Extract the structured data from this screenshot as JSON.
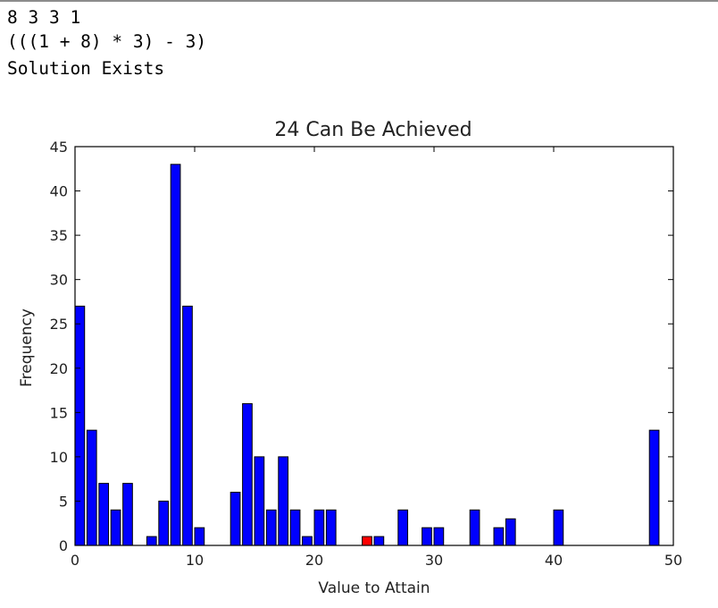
{
  "console": {
    "lines": [
      "8 3 3 1",
      "(((1 + 8) * 3) - 3)",
      "Solution Exists"
    ]
  },
  "colors": {
    "bar": "#0000ff",
    "highlight": "#ff0000",
    "bar_edge": "#000000"
  },
  "chart_data": {
    "type": "bar",
    "title": "24 Can Be Achieved",
    "xlabel": "Value to Attain",
    "ylabel": "Frequency",
    "xlim": [
      0,
      50
    ],
    "ylim": [
      0,
      45
    ],
    "bar_width": 0.8,
    "xticks": [
      0,
      10,
      20,
      30,
      40,
      50
    ],
    "yticks": [
      0,
      5,
      10,
      15,
      20,
      25,
      30,
      35,
      40,
      45
    ],
    "highlight_x": 24,
    "x": [
      0,
      1,
      2,
      3,
      4,
      6,
      7,
      8,
      9,
      10,
      13,
      14,
      15,
      16,
      17,
      18,
      19,
      20,
      21,
      24,
      25,
      27,
      29,
      30,
      33,
      35,
      36,
      40,
      48
    ],
    "values": [
      27,
      13,
      7,
      4,
      7,
      1,
      5,
      43,
      27,
      2,
      6,
      16,
      10,
      4,
      10,
      4,
      1,
      4,
      4,
      1,
      1,
      4,
      2,
      2,
      4,
      2,
      3,
      4,
      13
    ]
  }
}
